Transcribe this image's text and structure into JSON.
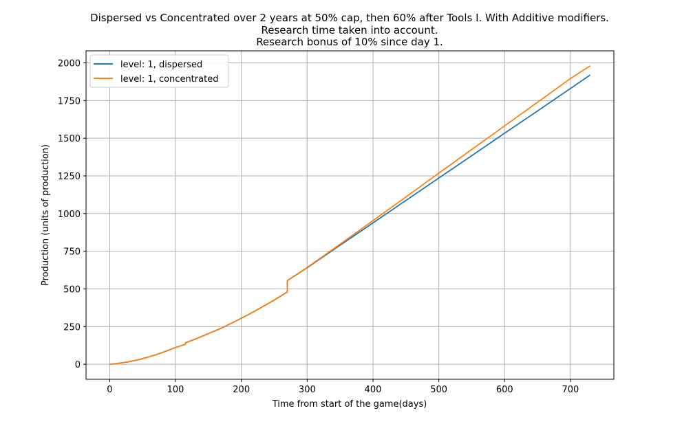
{
  "chart_data": {
    "type": "line",
    "title": [
      "Dispersed vs Concentrated over 2 years at 50% cap, then 60% after Tools I. With Additive modifiers.",
      "Research time taken into account.",
      "Research bonus of 10% since day 1."
    ],
    "xlabel": "Time from start of the game(days)",
    "ylabel": "Production (units of production)",
    "xlim": [
      -36,
      766
    ],
    "ylim": [
      -100,
      2080
    ],
    "xticks": [
      0,
      100,
      200,
      300,
      400,
      500,
      600,
      700
    ],
    "yticks": [
      0,
      250,
      500,
      750,
      1000,
      1250,
      1500,
      1750,
      2000
    ],
    "grid": true,
    "legend_position": "top-left",
    "series": [
      {
        "name": "level: 1, dispersed",
        "color": "#1f77b4",
        "x": [
          0,
          10,
          20,
          30,
          40,
          50,
          60,
          70,
          80,
          90,
          100,
          110,
          115,
          115,
          130,
          150,
          170,
          190,
          210,
          230,
          250,
          270,
          270,
          300,
          350,
          400,
          450,
          500,
          550,
          600,
          650,
          700,
          730
        ],
        "y": [
          0,
          4,
          10,
          17,
          26,
          37,
          49,
          63,
          78,
          94,
          111,
          125,
          132,
          142,
          167,
          203,
          240,
          283,
          328,
          376,
          426,
          480,
          555,
          640,
          790,
          938,
          1087,
          1236,
          1384,
          1533,
          1681,
          1830,
          1920
        ]
      },
      {
        "name": "level: 1, concentrated",
        "color": "#ff7f0e",
        "x": [
          0,
          10,
          20,
          30,
          40,
          50,
          60,
          70,
          80,
          90,
          100,
          110,
          115,
          115,
          130,
          150,
          170,
          190,
          210,
          230,
          250,
          270,
          270,
          300,
          350,
          400,
          450,
          500,
          550,
          600,
          650,
          700,
          730
        ],
        "y": [
          0,
          4,
          10,
          17,
          26,
          37,
          49,
          63,
          78,
          94,
          111,
          125,
          132,
          142,
          167,
          203,
          240,
          283,
          328,
          376,
          426,
          480,
          555,
          642,
          797,
          953,
          1110,
          1268,
          1425,
          1582,
          1739,
          1896,
          1980
        ]
      }
    ]
  }
}
